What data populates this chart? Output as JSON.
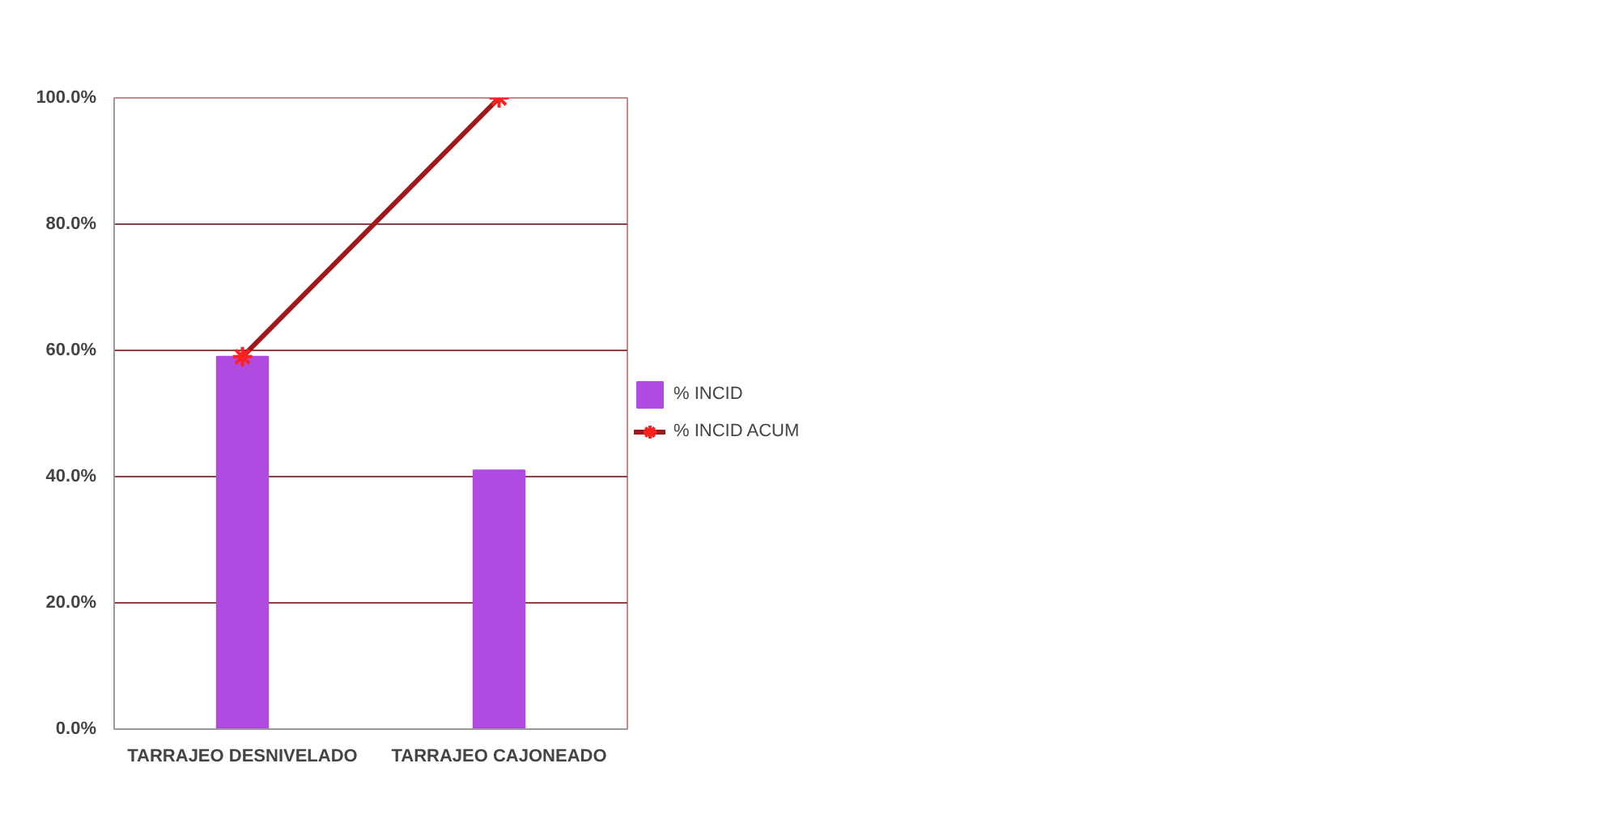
{
  "chart_data": {
    "type": "bar",
    "categories": [
      "TARRAJEO DESNIVELADO",
      "TARRAJEO CAJONEADO"
    ],
    "series": [
      {
        "name": "% INCID",
        "color": "#b04ae0",
        "values": [
          59,
          41
        ]
      },
      {
        "name": "% INCID ACUM",
        "type": "line",
        "color": "#a01818",
        "values": [
          59,
          100
        ]
      }
    ],
    "ylim": [
      0,
      100
    ],
    "yticks": [
      {
        "value": 0,
        "label": "0.0%"
      },
      {
        "value": 20,
        "label": "20.0%"
      },
      {
        "value": 40,
        "label": "40.0%"
      },
      {
        "value": 60,
        "label": "60.0%"
      },
      {
        "value": 80,
        "label": "80.0%"
      },
      {
        "value": 100,
        "label": "100.0%"
      }
    ],
    "grid": "y",
    "legend": "right",
    "marker": "cross",
    "line_style": "solid"
  }
}
